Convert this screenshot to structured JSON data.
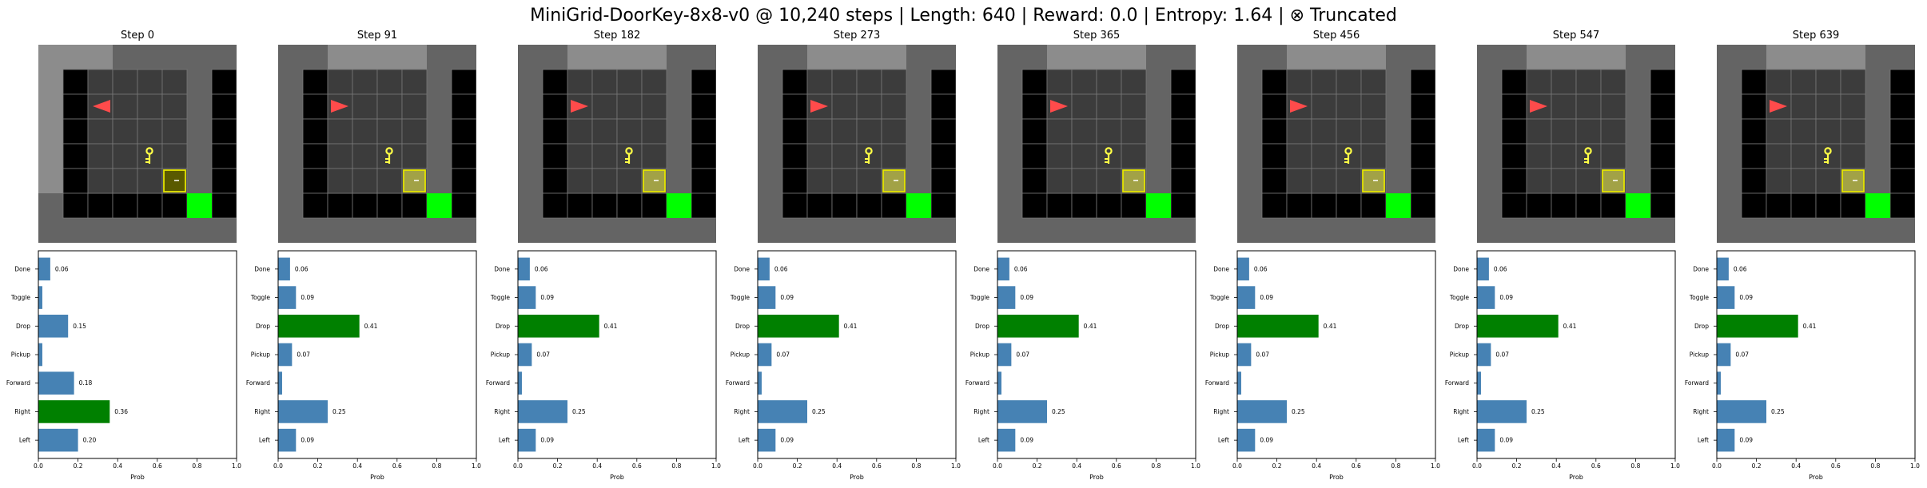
{
  "figure": {
    "title": "MiniGrid-DoorKey-8x8-v0 @ 10,240 steps | Length: 640 | Reward: 0.0 | Entropy: 1.64 | ⊗ Truncated"
  },
  "colors": {
    "outer_wall": "#646464",
    "explored": "#8c8c8c",
    "unseen": "#000000",
    "floor_cell": "#3c3c3c",
    "grid_line": "#787878",
    "agent": "#ff4b4b",
    "key": "#ffff46",
    "door_border": "#e5e500",
    "door_fill_start": "#5a5a00",
    "door_fill": "#a2a246",
    "goal": "#00ff00",
    "bar_default": "#4682b4",
    "bar_selected": "#008000"
  },
  "icons": {
    "agent": "agent-triangle-icon",
    "key": "key-icon",
    "door": "locked-door-icon",
    "goal": "goal-square-icon"
  },
  "chart_data": [
    {
      "type": "bar",
      "orientation": "horizontal",
      "title": "Step 0",
      "xlabel": "Prob",
      "ylabel": "",
      "xlim": [
        0,
        1
      ],
      "xticks": [
        "0.0",
        "0.2",
        "0.4",
        "0.6",
        "0.8",
        "1.0"
      ],
      "categories": [
        "Left",
        "Right",
        "Forward",
        "Pickup",
        "Drop",
        "Toggle",
        "Done"
      ],
      "values": [
        0.2,
        0.36,
        0.18,
        0.02,
        0.15,
        0.02,
        0.06
      ],
      "labels": [
        "0.20",
        "0.36",
        "0.18",
        "",
        "0.15",
        "",
        "0.06"
      ],
      "selected": "Right",
      "scene": "start"
    },
    {
      "type": "bar",
      "orientation": "horizontal",
      "title": "Step 91",
      "xlabel": "Prob",
      "ylabel": "",
      "xlim": [
        0,
        1
      ],
      "xticks": [
        "0.0",
        "0.2",
        "0.4",
        "0.6",
        "0.8",
        "1.0"
      ],
      "categories": [
        "Left",
        "Right",
        "Forward",
        "Pickup",
        "Drop",
        "Toggle",
        "Done"
      ],
      "values": [
        0.09,
        0.25,
        0.02,
        0.07,
        0.41,
        0.09,
        0.06
      ],
      "labels": [
        "0.09",
        "0.25",
        "",
        "0.07",
        "0.41",
        "0.09",
        "0.06"
      ],
      "selected": "Drop",
      "scene": "later"
    },
    {
      "type": "bar",
      "orientation": "horizontal",
      "title": "Step 182",
      "xlabel": "Prob",
      "ylabel": "",
      "xlim": [
        0,
        1
      ],
      "xticks": [
        "0.0",
        "0.2",
        "0.4",
        "0.6",
        "0.8",
        "1.0"
      ],
      "categories": [
        "Left",
        "Right",
        "Forward",
        "Pickup",
        "Drop",
        "Toggle",
        "Done"
      ],
      "values": [
        0.09,
        0.25,
        0.02,
        0.07,
        0.41,
        0.09,
        0.06
      ],
      "labels": [
        "0.09",
        "0.25",
        "",
        "0.07",
        "0.41",
        "0.09",
        "0.06"
      ],
      "selected": "Drop",
      "scene": "later"
    },
    {
      "type": "bar",
      "orientation": "horizontal",
      "title": "Step 273",
      "xlabel": "Prob",
      "ylabel": "",
      "xlim": [
        0,
        1
      ],
      "xticks": [
        "0.0",
        "0.2",
        "0.4",
        "0.6",
        "0.8",
        "1.0"
      ],
      "categories": [
        "Left",
        "Right",
        "Forward",
        "Pickup",
        "Drop",
        "Toggle",
        "Done"
      ],
      "values": [
        0.09,
        0.25,
        0.02,
        0.07,
        0.41,
        0.09,
        0.06
      ],
      "labels": [
        "0.09",
        "0.25",
        "",
        "0.07",
        "0.41",
        "0.09",
        "0.06"
      ],
      "selected": "Drop",
      "scene": "later"
    },
    {
      "type": "bar",
      "orientation": "horizontal",
      "title": "Step 365",
      "xlabel": "Prob",
      "ylabel": "",
      "xlim": [
        0,
        1
      ],
      "xticks": [
        "0.0",
        "0.2",
        "0.4",
        "0.6",
        "0.8",
        "1.0"
      ],
      "categories": [
        "Left",
        "Right",
        "Forward",
        "Pickup",
        "Drop",
        "Toggle",
        "Done"
      ],
      "values": [
        0.09,
        0.25,
        0.02,
        0.07,
        0.41,
        0.09,
        0.06
      ],
      "labels": [
        "0.09",
        "0.25",
        "",
        "0.07",
        "0.41",
        "0.09",
        "0.06"
      ],
      "selected": "Drop",
      "scene": "later"
    },
    {
      "type": "bar",
      "orientation": "horizontal",
      "title": "Step 456",
      "xlabel": "Prob",
      "ylabel": "",
      "xlim": [
        0,
        1
      ],
      "xticks": [
        "0.0",
        "0.2",
        "0.4",
        "0.6",
        "0.8",
        "1.0"
      ],
      "categories": [
        "Left",
        "Right",
        "Forward",
        "Pickup",
        "Drop",
        "Toggle",
        "Done"
      ],
      "values": [
        0.09,
        0.25,
        0.02,
        0.07,
        0.41,
        0.09,
        0.06
      ],
      "labels": [
        "0.09",
        "0.25",
        "",
        "0.07",
        "0.41",
        "0.09",
        "0.06"
      ],
      "selected": "Drop",
      "scene": "later"
    },
    {
      "type": "bar",
      "orientation": "horizontal",
      "title": "Step 547",
      "xlabel": "Prob",
      "ylabel": "",
      "xlim": [
        0,
        1
      ],
      "xticks": [
        "0.0",
        "0.2",
        "0.4",
        "0.6",
        "0.8",
        "1.0"
      ],
      "categories": [
        "Left",
        "Right",
        "Forward",
        "Pickup",
        "Drop",
        "Toggle",
        "Done"
      ],
      "values": [
        0.09,
        0.25,
        0.02,
        0.07,
        0.41,
        0.09,
        0.06
      ],
      "labels": [
        "0.09",
        "0.25",
        "",
        "0.07",
        "0.41",
        "0.09",
        "0.06"
      ],
      "selected": "Drop",
      "scene": "later"
    },
    {
      "type": "bar",
      "orientation": "horizontal",
      "title": "Step 639",
      "xlabel": "Prob",
      "ylabel": "",
      "xlim": [
        0,
        1
      ],
      "xticks": [
        "0.0",
        "0.2",
        "0.4",
        "0.6",
        "0.8",
        "1.0"
      ],
      "categories": [
        "Left",
        "Right",
        "Forward",
        "Pickup",
        "Drop",
        "Toggle",
        "Done"
      ],
      "values": [
        0.09,
        0.25,
        0.02,
        0.07,
        0.41,
        0.09,
        0.06
      ],
      "labels": [
        "0.09",
        "0.25",
        "",
        "0.07",
        "0.41",
        "0.09",
        "0.06"
      ],
      "selected": "Drop",
      "scene": "later"
    }
  ]
}
